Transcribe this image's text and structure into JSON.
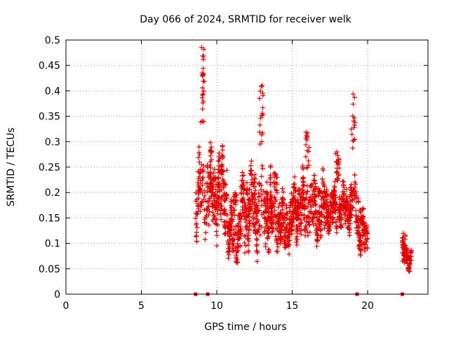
{
  "chart_data": {
    "type": "scatter",
    "title": "Day 066 of 2024, SRMTID for receiver welk",
    "xlabel": "GPS time / hours",
    "ylabel": "SRMTID / TECUs",
    "xlim": [
      0,
      24
    ],
    "ylim": [
      0,
      0.5
    ],
    "xticks": [
      "0",
      "5",
      "10",
      "15",
      "20"
    ],
    "yticks": [
      "0",
      "0.05",
      "0.1",
      "0.15",
      "0.2",
      "0.25",
      "0.3",
      "0.35",
      "0.4",
      "0.45",
      "0.5"
    ],
    "grid": true,
    "legend": "none",
    "marker": "plus",
    "color": "#e00000",
    "zero_marks_x": [
      8.6,
      9.4,
      19.3,
      22.3
    ],
    "segments": [
      {
        "x0": 8.6,
        "x1": 10.7,
        "base": 0.2,
        "amp": 0.09,
        "max": 0.5,
        "peak_x": 9.05
      },
      {
        "x0": 10.7,
        "x1": 11.6,
        "base": 0.12,
        "amp": 0.06,
        "max": 0.2,
        "peak_x": 11.2
      },
      {
        "x0": 11.6,
        "x1": 13.6,
        "base": 0.17,
        "amp": 0.09,
        "max": 0.43,
        "peak_x": 12.95
      },
      {
        "x0": 13.6,
        "x1": 15.0,
        "base": 0.14,
        "amp": 0.06,
        "max": 0.24,
        "peak_x": 13.9
      },
      {
        "x0": 15.0,
        "x1": 17.2,
        "base": 0.17,
        "amp": 0.07,
        "max": 0.33,
        "peak_x": 16.0
      },
      {
        "x0": 17.2,
        "x1": 18.8,
        "base": 0.17,
        "amp": 0.05,
        "max": 0.28,
        "peak_x": 18.0
      },
      {
        "x0": 18.8,
        "x1": 19.4,
        "base": 0.17,
        "amp": 0.06,
        "max": 0.4,
        "peak_x": 19.05
      },
      {
        "x0": 19.4,
        "x1": 20.0,
        "base": 0.11,
        "amp": 0.04,
        "max": 0.17,
        "peak_x": 19.6
      },
      {
        "x0": 22.3,
        "x1": 22.9,
        "base": 0.07,
        "amp": 0.025,
        "max": 0.12,
        "peak_x": 22.4
      }
    ]
  }
}
